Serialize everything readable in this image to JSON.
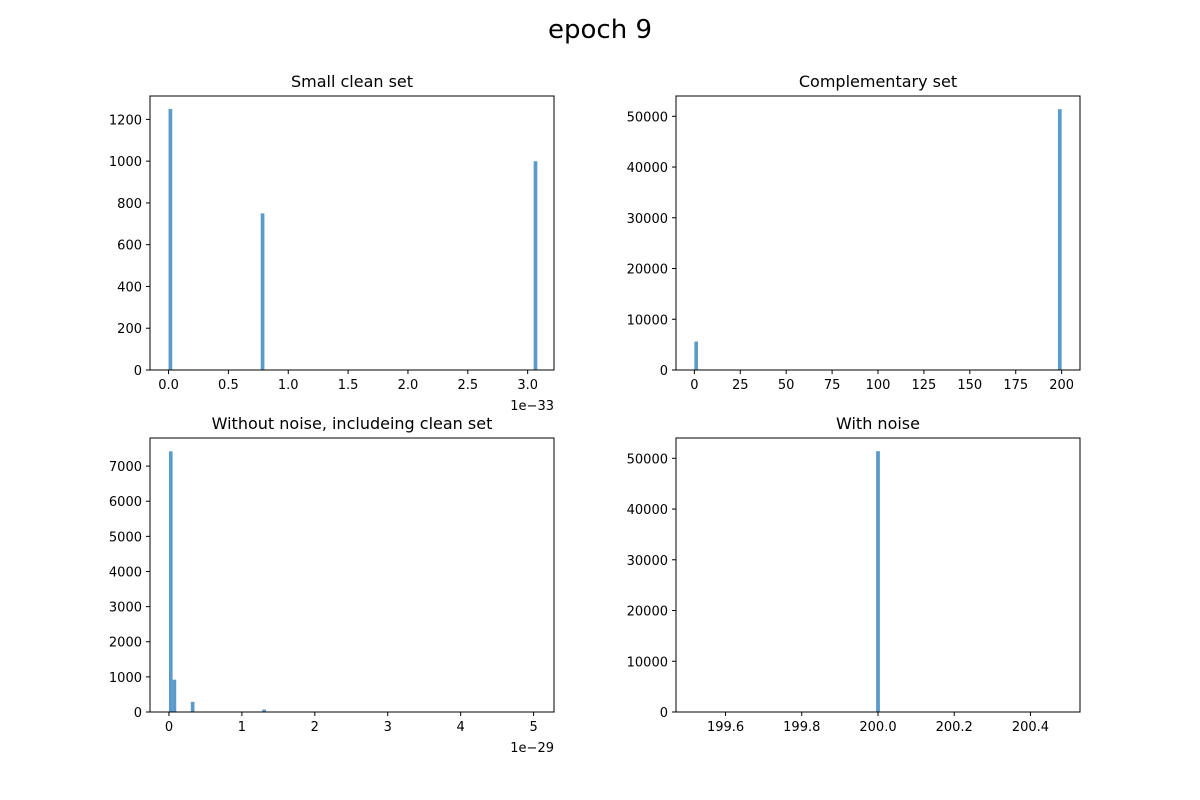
{
  "figure_title": "epoch 9",
  "bar_color": "#5b9bc9",
  "chart_data": [
    {
      "type": "bar",
      "title": "Small clean set",
      "xlabel": "",
      "ylabel": "",
      "x_offset_label": "1e−33",
      "xlim": [
        -0.155,
        3.22
      ],
      "ylim": [
        0,
        1312
      ],
      "xticks": [
        0.0,
        0.5,
        1.0,
        1.5,
        2.0,
        2.5,
        3.0
      ],
      "xtick_labels": [
        "0.0",
        "0.5",
        "1.0",
        "1.5",
        "2.0",
        "2.5",
        "3.0"
      ],
      "yticks": [
        0,
        200,
        400,
        600,
        800,
        1000,
        1200
      ],
      "ytick_labels": [
        "0",
        "200",
        "400",
        "600",
        "800",
        "1000",
        "1200"
      ],
      "bin_width": 0.0308,
      "bars": [
        {
          "x": 0.0,
          "value": 1250
        },
        {
          "x": 0.77,
          "value": 750
        },
        {
          "x": 3.05,
          "value": 1000
        }
      ]
    },
    {
      "type": "bar",
      "title": "Complementary set",
      "xlabel": "",
      "ylabel": "",
      "x_offset_label": "",
      "xlim": [
        -10,
        210
      ],
      "ylim": [
        0,
        54000
      ],
      "xticks": [
        0,
        25,
        50,
        75,
        100,
        125,
        150,
        175,
        200
      ],
      "xtick_labels": [
        "0",
        "25",
        "50",
        "75",
        "100",
        "125",
        "150",
        "175",
        "200"
      ],
      "yticks": [
        0,
        10000,
        20000,
        30000,
        40000,
        50000
      ],
      "ytick_labels": [
        "0",
        "10000",
        "20000",
        "30000",
        "40000",
        "50000"
      ],
      "bin_width": 2.0,
      "bars": [
        {
          "x": 0.0,
          "value": 5600
        },
        {
          "x": 198.0,
          "value": 51400
        }
      ]
    },
    {
      "type": "bar",
      "title": "Without noise, includeing clean set",
      "xlabel": "",
      "ylabel": "",
      "x_offset_label": "1e−29",
      "xlim": [
        -0.26,
        5.28
      ],
      "ylim": [
        0,
        7800
      ],
      "xticks": [
        0,
        1,
        2,
        3,
        4,
        5
      ],
      "xtick_labels": [
        "0",
        "1",
        "2",
        "3",
        "4",
        "5"
      ],
      "yticks": [
        0,
        1000,
        2000,
        3000,
        4000,
        5000,
        6000,
        7000
      ],
      "ytick_labels": [
        "0",
        "1000",
        "2000",
        "3000",
        "4000",
        "5000",
        "6000",
        "7000"
      ],
      "bin_width": 0.05,
      "bars": [
        {
          "x": 0.0,
          "value": 7420
        },
        {
          "x": 0.05,
          "value": 920
        },
        {
          "x": 0.3,
          "value": 290
        },
        {
          "x": 1.28,
          "value": 70
        }
      ]
    },
    {
      "type": "bar",
      "title": "With noise",
      "xlabel": "",
      "ylabel": "",
      "x_offset_label": "",
      "xlim": [
        199.47,
        200.53
      ],
      "ylim": [
        0,
        54000
      ],
      "xticks": [
        199.6,
        199.8,
        200.0,
        200.2,
        200.4
      ],
      "xtick_labels": [
        "199.6",
        "199.8",
        "200.0",
        "200.2",
        "200.4"
      ],
      "yticks": [
        0,
        10000,
        20000,
        30000,
        40000,
        50000
      ],
      "ytick_labels": [
        "0",
        "10000",
        "20000",
        "30000",
        "40000",
        "50000"
      ],
      "bin_width": 0.01,
      "bars": [
        {
          "x": 199.995,
          "value": 51400
        }
      ]
    }
  ]
}
